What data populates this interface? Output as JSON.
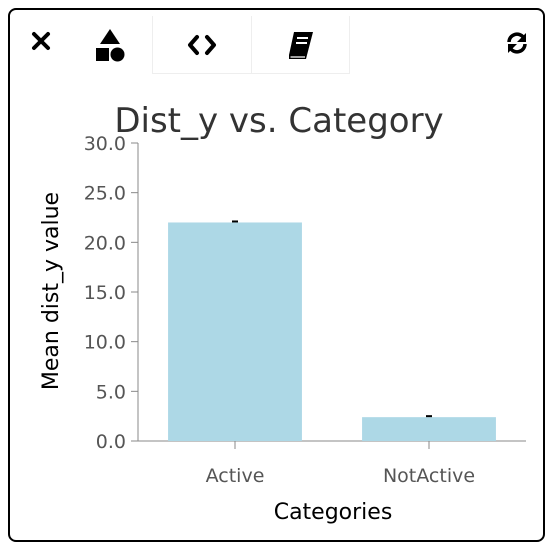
{
  "toolbar": {
    "close_icon": "close-icon",
    "shapes_icon": "shapes-icon",
    "code_icon": "code-icon",
    "book_icon": "book-icon",
    "refresh_icon": "refresh-icon"
  },
  "colors": {
    "bar": "#add8e6",
    "axis": "#888888",
    "tick_text": "#555555",
    "title": "#333333",
    "error_bar": "#000000"
  },
  "chart_data": {
    "type": "bar",
    "title": "Dist_y vs. Category",
    "xlabel": "Categories",
    "ylabel": "Mean dist_y value",
    "categories": [
      "Active",
      "NotActive"
    ],
    "values": [
      22.0,
      2.4
    ],
    "ylim": [
      0,
      30
    ],
    "yticks": [
      0,
      5,
      10,
      15,
      20,
      25,
      30
    ],
    "ytick_labels": [
      "0.0",
      "5.0",
      "10.0",
      "15.0",
      "20.0",
      "25.0",
      "30.0"
    ],
    "error_bars": true,
    "grid": false,
    "legend": "none"
  }
}
